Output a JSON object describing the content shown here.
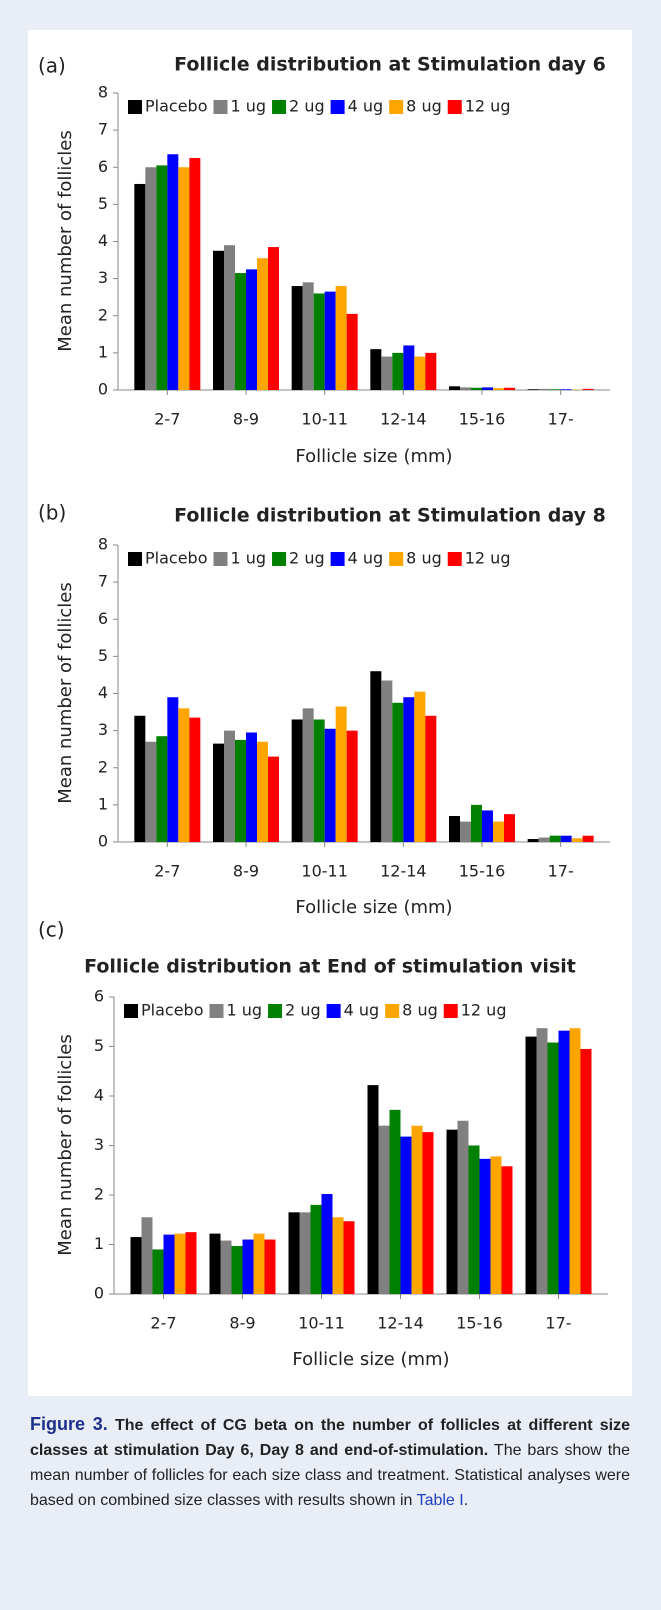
{
  "chart_data": [
    {
      "type": "bar",
      "panel": "(a)",
      "title": "Follicle distribution at Stimulation day 6",
      "x_label": "Follicle size (mm)",
      "y_label": "Mean number of follicles",
      "categories": [
        "2-7",
        "8-9",
        "10-11",
        "12-14",
        "15-16",
        "17-"
      ],
      "series": [
        {
          "name": "Placebo",
          "color": "#000000",
          "values": [
            5.55,
            3.75,
            2.8,
            1.1,
            0.1,
            0.02
          ]
        },
        {
          "name": "1 ug",
          "color": "#808080",
          "values": [
            6.0,
            3.9,
            2.9,
            0.9,
            0.07,
            0.03
          ]
        },
        {
          "name": "2 ug",
          "color": "#008000",
          "values": [
            6.05,
            3.15,
            2.6,
            1.0,
            0.06,
            0.02
          ]
        },
        {
          "name": "4 ug",
          "color": "#0000ff",
          "values": [
            6.35,
            3.25,
            2.65,
            1.2,
            0.07,
            0.02
          ]
        },
        {
          "name": "8 ug",
          "color": "#ffa500",
          "values": [
            6.0,
            3.55,
            2.8,
            0.9,
            0.05,
            0.01
          ]
        },
        {
          "name": "12 ug",
          "color": "#ff0000",
          "values": [
            6.25,
            3.85,
            2.05,
            1.0,
            0.06,
            0.03
          ]
        }
      ],
      "ylim": [
        0,
        8
      ],
      "yticks": [
        0,
        1,
        2,
        3,
        4,
        5,
        6,
        7,
        8
      ],
      "legend": "upper left",
      "grid": false
    },
    {
      "type": "bar",
      "panel": "(b)",
      "title": "Follicle distribution at Stimulation day 8",
      "x_label": "Follicle size (mm)",
      "y_label": "Mean number of follicles",
      "categories": [
        "2-7",
        "8-9",
        "10-11",
        "12-14",
        "15-16",
        "17-"
      ],
      "series": [
        {
          "name": "Placebo",
          "color": "#000000",
          "values": [
            3.4,
            2.65,
            3.3,
            4.6,
            0.7,
            0.08
          ]
        },
        {
          "name": "1 ug",
          "color": "#808080",
          "values": [
            2.7,
            3.0,
            3.6,
            4.35,
            0.55,
            0.12
          ]
        },
        {
          "name": "2 ug",
          "color": "#008000",
          "values": [
            2.85,
            2.75,
            3.3,
            3.75,
            1.0,
            0.17
          ]
        },
        {
          "name": "4 ug",
          "color": "#0000ff",
          "values": [
            3.9,
            2.95,
            3.05,
            3.9,
            0.85,
            0.17
          ]
        },
        {
          "name": "8 ug",
          "color": "#ffa500",
          "values": [
            3.6,
            2.7,
            3.65,
            4.05,
            0.55,
            0.1
          ]
        },
        {
          "name": "12 ug",
          "color": "#ff0000",
          "values": [
            3.35,
            2.3,
            3.0,
            3.4,
            0.75,
            0.17
          ]
        }
      ],
      "ylim": [
        0,
        8
      ],
      "yticks": [
        0,
        1,
        2,
        3,
        4,
        5,
        6,
        7,
        8
      ],
      "legend": "upper left",
      "grid": false
    },
    {
      "type": "bar",
      "panel": "(c)",
      "title": "Follicle distribution at End of stimulation visit",
      "x_label": "Follicle size (mm)",
      "y_label": "Mean number of follicles",
      "categories": [
        "2-7",
        "8-9",
        "10-11",
        "12-14",
        "15-16",
        "17-"
      ],
      "series": [
        {
          "name": "Placebo",
          "color": "#000000",
          "values": [
            1.15,
            1.22,
            1.65,
            4.22,
            3.32,
            5.2
          ]
        },
        {
          "name": "1 ug",
          "color": "#808080",
          "values": [
            1.55,
            1.08,
            1.65,
            3.4,
            3.5,
            5.37
          ]
        },
        {
          "name": "2 ug",
          "color": "#008000",
          "values": [
            0.9,
            0.97,
            1.8,
            3.72,
            3.0,
            5.08
          ]
        },
        {
          "name": "4 ug",
          "color": "#0000ff",
          "values": [
            1.2,
            1.1,
            2.02,
            3.18,
            2.73,
            5.32
          ]
        },
        {
          "name": "8 ug",
          "color": "#ffa500",
          "values": [
            1.22,
            1.22,
            1.55,
            3.4,
            2.78,
            5.37
          ]
        },
        {
          "name": "12 ug",
          "color": "#ff0000",
          "values": [
            1.25,
            1.1,
            1.47,
            3.27,
            2.58,
            4.95
          ]
        }
      ],
      "ylim": [
        0,
        6
      ],
      "yticks": [
        0,
        1,
        2,
        3,
        4,
        5,
        6
      ],
      "legend": "upper left",
      "grid": false
    }
  ],
  "caption": {
    "label": "Figure 3.",
    "title": "The effect of CG beta on the number of follicles at different size classes at stimulation Day 6, Day 8 and end-of-stimulation.",
    "text": "The bars show the mean number of follicles for each size class and treatment. Statistical analyses were based on combined size classes with results shown in",
    "link": "Table I",
    "end": "."
  }
}
